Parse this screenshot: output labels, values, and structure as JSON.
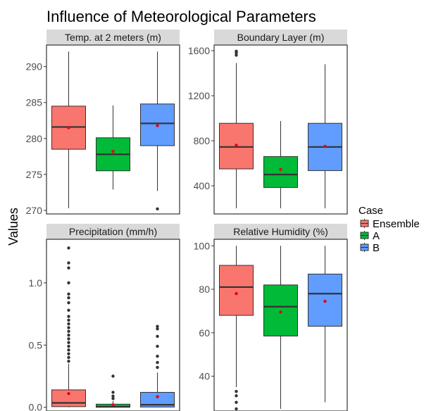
{
  "chart_data": {
    "type": "boxplot",
    "title": "Influence of Meteorological Parameters",
    "ylabel": "Values",
    "xlabel": "",
    "legend": {
      "title": "Case",
      "placement": "right",
      "entries": [
        {
          "name": "Ensemble",
          "color": "#F8766D"
        },
        {
          "name": "A",
          "color": "#00BA38"
        },
        {
          "name": "B",
          "color": "#619CFF"
        }
      ]
    },
    "panels": [
      {
        "strip": "Temp. at 2 meters (m)",
        "ylim": [
          269.5,
          293
        ],
        "yticks": [
          270,
          275,
          280,
          285,
          290
        ],
        "tick_labels": [
          "270",
          "275",
          "280",
          "285",
          "290"
        ],
        "boxes": [
          {
            "group": "Ensemble",
            "min": 270.3,
            "q1": 278.5,
            "median": 281.6,
            "q3": 284.5,
            "max": 292.1,
            "mean": 281.5,
            "outliers": []
          },
          {
            "group": "A",
            "min": 272.9,
            "q1": 275.5,
            "median": 277.8,
            "q3": 280.1,
            "max": 284.6,
            "mean": 278.2,
            "outliers": []
          },
          {
            "group": "B",
            "min": 272.7,
            "q1": 279.0,
            "median": 282.1,
            "q3": 284.8,
            "max": 292.1,
            "mean": 281.8,
            "outliers": [
              270.2
            ]
          }
        ]
      },
      {
        "strip": "Boundary Layer (m)",
        "ylim": [
          150,
          1650
        ],
        "yticks": [
          400,
          800,
          1200,
          1600
        ],
        "tick_labels": [
          "400",
          "800",
          "1200",
          "1600"
        ],
        "boxes": [
          {
            "group": "Ensemble",
            "min": 200,
            "q1": 550,
            "median": 745,
            "q3": 955,
            "max": 1490,
            "mean": 760,
            "outliers": [
              1560,
              1580,
              1595
            ]
          },
          {
            "group": "A",
            "min": 200,
            "q1": 385,
            "median": 500,
            "q3": 660,
            "max": 975,
            "mean": 545,
            "outliers": []
          },
          {
            "group": "B",
            "min": 200,
            "q1": 535,
            "median": 745,
            "q3": 955,
            "max": 1480,
            "mean": 750,
            "outliers": []
          }
        ]
      },
      {
        "strip": "Precipitation (mm/h)",
        "ylim": [
          -0.03,
          1.35
        ],
        "yticks": [
          0.0,
          0.5,
          1.0
        ],
        "tick_labels": [
          "0.0",
          "0.5",
          "1.0"
        ],
        "boxes": [
          {
            "group": "Ensemble",
            "min": 0.0,
            "q1": 0.005,
            "median": 0.035,
            "q3": 0.14,
            "max": 0.35,
            "mean": 0.11,
            "outliers": [
              0.37,
              0.4,
              0.43,
              0.46,
              0.49,
              0.52,
              0.55,
              0.58,
              0.61,
              0.64,
              0.67,
              0.7,
              0.73,
              0.78,
              0.84,
              0.88,
              0.91,
              1.0,
              1.12,
              1.16,
              1.28
            ]
          },
          {
            "group": "A",
            "min": 0.0,
            "q1": 0.0,
            "median": 0.005,
            "q3": 0.025,
            "max": 0.05,
            "mean": 0.02,
            "outliers": [
              0.07,
              0.09,
              0.12,
              0.25
            ]
          },
          {
            "group": "B",
            "min": 0.0,
            "q1": 0.002,
            "median": 0.02,
            "q3": 0.12,
            "max": 0.28,
            "mean": 0.085,
            "outliers": [
              0.32,
              0.36,
              0.41,
              0.49,
              0.57,
              0.63,
              0.65
            ]
          }
        ]
      },
      {
        "strip": "Relative Humidity (%)",
        "ylim": [
          24,
          103
        ],
        "yticks": [
          40,
          60,
          80,
          100
        ],
        "tick_labels": [
          "40",
          "60",
          "80",
          "100"
        ],
        "boxes": [
          {
            "group": "Ensemble",
            "min": 35,
            "q1": 68,
            "median": 81,
            "q3": 91,
            "max": 100,
            "mean": 78,
            "outliers": [
              25,
              28,
              31,
              33
            ]
          },
          {
            "group": "A",
            "min": 25,
            "q1": 58.5,
            "median": 72,
            "q3": 82,
            "max": 100,
            "mean": 69.5,
            "outliers": []
          },
          {
            "group": "B",
            "min": 28,
            "q1": 63,
            "median": 78,
            "q3": 87,
            "max": 100,
            "mean": 74.5,
            "outliers": []
          }
        ]
      }
    ]
  }
}
